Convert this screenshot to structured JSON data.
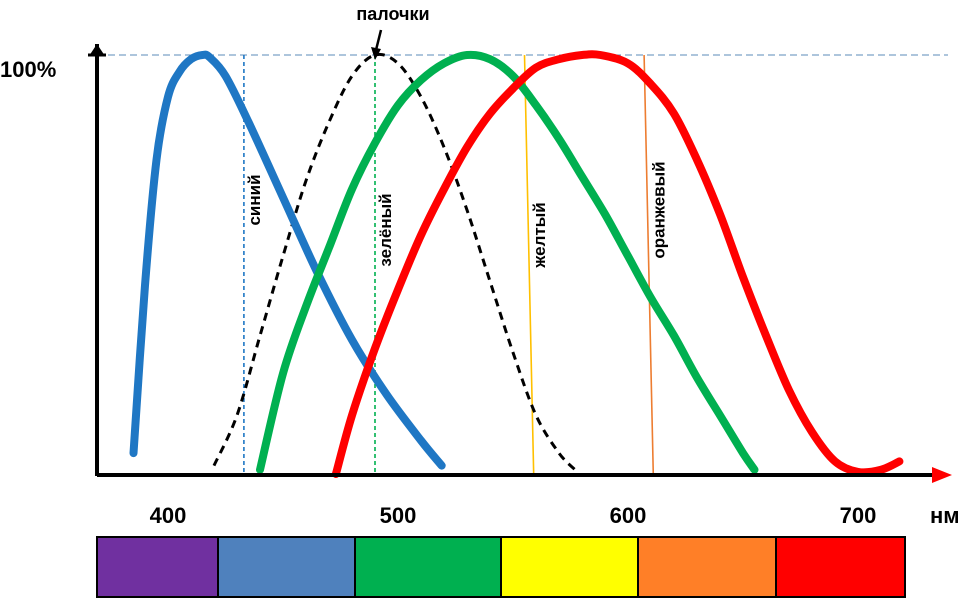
{
  "chart_data": {
    "type": "line",
    "title": "",
    "xlabel": "",
    "ylabel": "",
    "x_unit": "нм",
    "y_max_label": "100%",
    "xlim": [
      375,
      720
    ],
    "ylim": [
      0,
      100
    ],
    "xticks": [
      "400",
      "500",
      "600",
      "700"
    ],
    "series": [
      {
        "color": "#1f77c4",
        "style": "solid",
        "x": [
          385,
          390,
          395,
          400,
          405,
          410,
          415,
          418,
          425,
          435,
          450,
          465,
          480,
          495,
          510,
          519
        ],
        "y": [
          5,
          45,
          75,
          90,
          96,
          99,
          100,
          99.5,
          95,
          84,
          66,
          48,
          32,
          19,
          8,
          2
        ]
      },
      {
        "name": "палочки",
        "color": "#000000",
        "style": "dashed",
        "x": [
          420,
          430,
          440,
          450,
          460,
          470,
          480,
          490,
          500,
          510,
          520,
          530,
          540,
          550,
          560,
          570,
          577
        ],
        "y": [
          2,
          14,
          33,
          52,
          70,
          84,
          95,
          100,
          98,
          90,
          78,
          63,
          46,
          29,
          14,
          5,
          1
        ]
      },
      {
        "color": "#00b050",
        "style": "solid",
        "x": [
          440,
          450,
          460,
          470,
          480,
          490,
          500,
          510,
          520,
          530,
          540,
          550,
          560,
          570,
          580,
          590,
          600,
          610,
          620,
          630,
          640,
          650,
          655
        ],
        "y": [
          1,
          24,
          40,
          54,
          68,
          79,
          88,
          94,
          98,
          100,
          99,
          95,
          88,
          80,
          71,
          62,
          52,
          42,
          33,
          23,
          14,
          5,
          1
        ]
      },
      {
        "color": "#ff0000",
        "style": "solid",
        "x": [
          473,
          480,
          490,
          500,
          510,
          520,
          530,
          540,
          550,
          560,
          570,
          580,
          588,
          600,
          610,
          620,
          630,
          640,
          650,
          660,
          670,
          680,
          690,
          700,
          710,
          718
        ],
        "y": [
          0,
          14,
          30,
          44,
          57,
          68,
          78,
          86,
          92,
          97,
          99,
          100,
          100,
          98,
          93,
          86,
          75,
          62,
          47,
          33,
          20,
          10,
          3,
          0.5,
          1,
          3
        ]
      }
    ],
    "reference_lines": [
      {
        "x": 433,
        "label": "синий",
        "color": "#1f77c4",
        "style": "dashed"
      },
      {
        "x": 490,
        "label": "зелёный",
        "color": "#00b050",
        "style": "dashed"
      },
      {
        "x": 557,
        "x_top": 555,
        "x_bottom": 559,
        "label": "желтый",
        "color": "#ffc000",
        "style": "solid"
      },
      {
        "x": 609,
        "x_top": 607,
        "x_bottom": 611,
        "label": "оранжевый",
        "color": "#ed7d31",
        "style": "solid"
      }
    ],
    "annotations": [
      {
        "text": "палочки",
        "x": 490,
        "y": 100
      }
    ],
    "spectrum_bar": [
      {
        "color": "#7030a0"
      },
      {
        "color": "#4f81bd"
      },
      {
        "color": "#00b050"
      },
      {
        "color": "#ffff00"
      },
      {
        "color": "#ff7f27"
      },
      {
        "color": "#ff0000"
      }
    ]
  }
}
